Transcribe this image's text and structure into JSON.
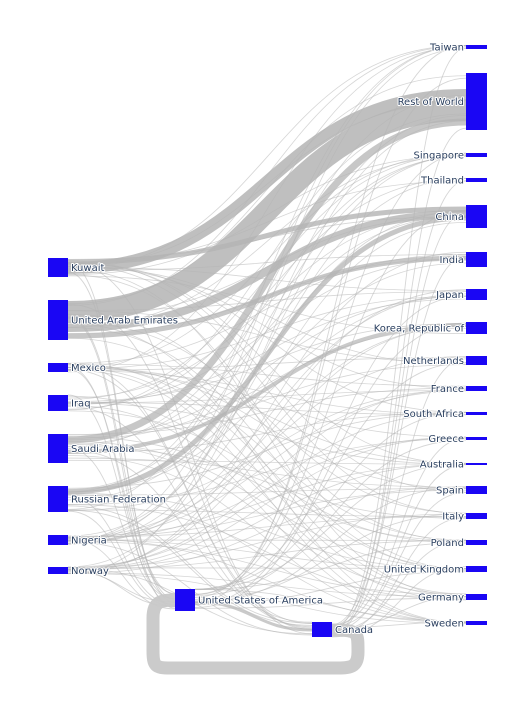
{
  "diagram": {
    "type": "sankey",
    "node_color": "#1a06f4",
    "link_color": "#b4b4b4",
    "sources": [
      "Kuwait",
      "United Arab Emirates",
      "Mexico",
      "Iraq",
      "Saudi Arabia",
      "Russian Federation",
      "Nigeria",
      "Norway"
    ],
    "intermediates": [
      "United States of America",
      "Canada"
    ],
    "destinations": [
      "Taiwan",
      "Rest of World",
      "Singapore",
      "Thailand",
      "China",
      "India",
      "Japan",
      "Korea, Republic of",
      "Netherlands",
      "France",
      "South Africa",
      "Greece",
      "Australia",
      "Spain",
      "Italy",
      "Poland",
      "United Kingdom",
      "Germany",
      "Sweden"
    ]
  }
}
